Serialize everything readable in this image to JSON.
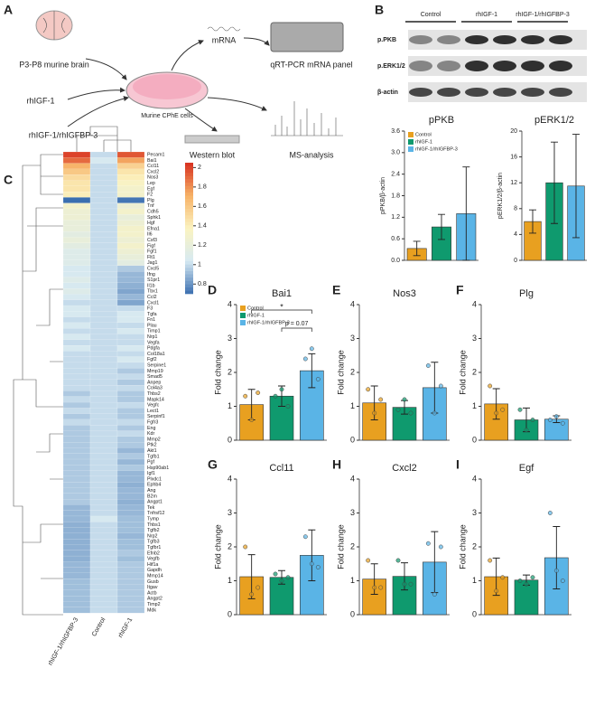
{
  "figure": {
    "panel_labels": [
      "A",
      "B",
      "C",
      "D",
      "E",
      "F",
      "G",
      "H",
      "I"
    ],
    "diagram": {
      "brain": "P3-P8 murine brain",
      "mrna": "mRNA",
      "panel": "qRT-PCR mRNA panel",
      "igf": "rhIGF-1",
      "cells": "Murine CPhE cells",
      "combo": "rhIGF-1/rhIGFBP-3",
      "wb": "Western blot",
      "ms": "MS-analysis"
    },
    "blot": {
      "groups": [
        "Control",
        "rhIGF-1",
        "rhIGF-1/rhIGFBP-3"
      ],
      "rows": [
        "p.PKB",
        "p.ERK1/2",
        "β-actin"
      ]
    }
  },
  "groups": {
    "names": [
      "Control",
      "rhIGF-1",
      "rhIGF-1/rhIGFBP-3"
    ],
    "colors": [
      "#e8a020",
      "#0f9a6e",
      "#5ab4e6"
    ]
  },
  "chart_data": [
    {
      "type": "heatmap",
      "columns": [
        "rhIGF-1/rhIGFBP-3",
        "Control",
        "rhIGF-1"
      ],
      "rows": [
        "Pecam1",
        "Bai1",
        "Ccl11",
        "Cxcl2",
        "Nos3",
        "Lep",
        "Egf",
        "F2",
        "Plg",
        "Tnf",
        "Cdh5",
        "Sphk1",
        "Hgf",
        "Efna1",
        "Il6",
        "Csf3",
        "Figf",
        "Fgf1",
        "Flt1",
        "Jag1",
        "Cxcl5",
        "Ifng",
        "S1pr1",
        "Il1b",
        "Tbx1",
        "Ccl2",
        "Cxcl1",
        "F3",
        "Tgfa",
        "Fn1",
        "Plau",
        "Timp1",
        "Nrp1",
        "Vegfa",
        "Pdgfa",
        "Col18a1",
        "Fgf2",
        "Serpine1",
        "Mmp19",
        "Smad5",
        "Anpep",
        "Col4a3",
        "Thbs2",
        "Mapk14",
        "Vegfc",
        "Lect1",
        "Serpinf1",
        "Fgfr3",
        "Eng",
        "Kdr",
        "Mmp2",
        "Ptk2",
        "Akt1",
        "Tgfb1",
        "Pgf",
        "Hsp90ab1",
        "Igf1",
        "Plxdc1",
        "Ephb4",
        "Ang",
        "B2m",
        "Angpt1",
        "Tek",
        "Tnfrsf12",
        "Tymp",
        "Thbs1",
        "Tgfb2",
        "Nrp2",
        "Tgfb3",
        "Tgfbr1",
        "Efnb2",
        "Vegfb",
        "Hif1a",
        "Gapdh",
        "Mmp14",
        "Gusb",
        "Itgav",
        "Actb",
        "Angpt2",
        "Timp2",
        "Mdk"
      ],
      "values": [
        [
          2.0,
          1.0,
          1.95
        ],
        [
          1.9,
          1.05,
          1.75
        ],
        [
          1.7,
          1.0,
          1.55
        ],
        [
          1.6,
          1.0,
          1.45
        ],
        [
          1.5,
          1.0,
          1.4
        ],
        [
          1.45,
          1.0,
          1.35
        ],
        [
          1.45,
          1.0,
          1.3
        ],
        [
          1.4,
          1.0,
          1.3
        ],
        [
          0.7,
          1.0,
          0.72
        ],
        [
          1.3,
          1.0,
          1.25
        ],
        [
          1.25,
          1.0,
          1.3
        ],
        [
          1.25,
          1.0,
          1.2
        ],
        [
          1.2,
          1.0,
          1.25
        ],
        [
          1.2,
          1.0,
          1.3
        ],
        [
          1.15,
          1.0,
          1.3
        ],
        [
          1.2,
          1.0,
          1.25
        ],
        [
          1.15,
          1.0,
          1.3
        ],
        [
          1.1,
          1.0,
          1.25
        ],
        [
          1.1,
          1.0,
          1.2
        ],
        [
          1.1,
          1.0,
          1.15
        ],
        [
          1.05,
          1.0,
          0.95
        ],
        [
          1.05,
          1.0,
          0.9
        ],
        [
          1.1,
          1.0,
          0.9
        ],
        [
          1.05,
          1.0,
          0.88
        ],
        [
          1.1,
          1.0,
          0.85
        ],
        [
          1.05,
          1.0,
          0.9
        ],
        [
          1.0,
          1.0,
          0.85
        ],
        [
          1.05,
          1.0,
          1.0
        ],
        [
          1.05,
          1.0,
          1.05
        ],
        [
          1.0,
          1.0,
          1.05
        ],
        [
          1.05,
          1.0,
          1.0
        ],
        [
          1.0,
          1.0,
          1.05
        ],
        [
          1.05,
          1.0,
          1.0
        ],
        [
          1.0,
          1.0,
          1.0
        ],
        [
          1.05,
          1.0,
          1.05
        ],
        [
          1.0,
          1.0,
          1.0
        ],
        [
          1.0,
          1.0,
          1.05
        ],
        [
          1.0,
          1.0,
          1.0
        ],
        [
          1.0,
          1.0,
          0.95
        ],
        [
          1.0,
          1.0,
          1.0
        ],
        [
          1.0,
          1.0,
          0.95
        ],
        [
          1.0,
          1.0,
          1.0
        ],
        [
          0.95,
          1.0,
          0.95
        ],
        [
          1.0,
          1.0,
          0.95
        ],
        [
          0.95,
          1.0,
          1.0
        ],
        [
          1.0,
          1.0,
          0.95
        ],
        [
          0.95,
          1.0,
          0.95
        ],
        [
          1.0,
          1.0,
          1.0
        ],
        [
          0.95,
          1.0,
          0.95
        ],
        [
          0.95,
          1.0,
          1.0
        ],
        [
          0.95,
          1.0,
          0.95
        ],
        [
          0.95,
          1.0,
          0.95
        ],
        [
          0.95,
          1.0,
          0.9
        ],
        [
          0.95,
          1.0,
          0.95
        ],
        [
          0.95,
          1.0,
          0.9
        ],
        [
          0.95,
          1.0,
          0.95
        ],
        [
          0.95,
          1.0,
          0.9
        ],
        [
          0.95,
          1.0,
          0.9
        ],
        [
          0.95,
          1.0,
          0.88
        ],
        [
          0.95,
          1.0,
          0.9
        ],
        [
          0.95,
          1.0,
          0.9
        ],
        [
          0.95,
          1.0,
          0.88
        ],
        [
          0.9,
          1.0,
          0.9
        ],
        [
          0.9,
          1.0,
          0.9
        ],
        [
          0.9,
          1.05,
          0.92
        ],
        [
          0.88,
          1.0,
          0.92
        ],
        [
          0.88,
          1.0,
          0.92
        ],
        [
          0.88,
          1.0,
          0.9
        ],
        [
          0.88,
          1.0,
          0.92
        ],
        [
          0.88,
          1.0,
          0.92
        ],
        [
          0.88,
          1.0,
          0.95
        ],
        [
          0.88,
          1.0,
          0.92
        ],
        [
          0.9,
          1.0,
          0.95
        ],
        [
          0.9,
          1.0,
          0.95
        ],
        [
          0.9,
          1.0,
          0.95
        ],
        [
          0.92,
          1.0,
          0.95
        ],
        [
          0.92,
          1.0,
          0.95
        ],
        [
          0.92,
          1.0,
          0.95
        ],
        [
          0.92,
          1.0,
          0.95
        ],
        [
          0.92,
          1.0,
          0.95
        ],
        [
          0.92,
          1.0,
          0.95
        ]
      ],
      "clim": [
        0.7,
        2.05
      ],
      "colormap": [
        "#3b6fb0",
        "#d6e9f2",
        "#fbf3c0",
        "#f7b267",
        "#d7301f"
      ],
      "colorbar_ticks": [
        0.8,
        1,
        1.2,
        1.4,
        1.6,
        1.8,
        2
      ]
    },
    {
      "type": "bar",
      "title": "pPKB",
      "ylabel": "pPKB/β-actin",
      "legend": true,
      "values": [
        0.33,
        0.93,
        1.3
      ],
      "errors": [
        0.2,
        0.35,
        1.3
      ],
      "ylim": [
        0,
        3.6
      ],
      "yticks": [
        {
          "value": 0,
          "label": "0.0"
        },
        0.6,
        1.2,
        1.8,
        2.4,
        {
          "value": 3,
          "label": "3.0"
        },
        3.6
      ]
    },
    {
      "type": "bar",
      "title": "pERK1/2",
      "ylabel": "pERK1/2/β-actin",
      "values": [
        6,
        12,
        11.5
      ],
      "errors": [
        1.8,
        6.3,
        8
      ],
      "ylim": [
        0,
        20
      ],
      "yticks": [
        0,
        4,
        8,
        12,
        16,
        20
      ]
    },
    {
      "type": "bar",
      "title": "Bai1",
      "ylabel": "Fold change",
      "legend": true,
      "values": [
        1.05,
        1.3,
        2.05
      ],
      "errors": [
        0.45,
        0.3,
        0.5
      ],
      "points": [
        [
          1.3,
          0.6,
          1.4
        ],
        [
          1.3,
          1.5,
          1.0
        ],
        [
          2.4,
          2.7,
          1.8
        ]
      ],
      "annotations": [
        "*",
        "p = 0.07"
      ],
      "ylim": [
        0,
        4
      ],
      "yticks": [
        0,
        1,
        2,
        3,
        4
      ]
    },
    {
      "type": "bar",
      "title": "Nos3",
      "ylabel": "Fold change",
      "values": [
        1.1,
        0.97,
        1.55
      ],
      "errors": [
        0.5,
        0.2,
        0.75
      ],
      "points": [
        [
          1.5,
          0.8,
          1.2
        ],
        [
          0.9,
          1.2,
          0.8
        ],
        [
          2.2,
          0.8,
          1.6
        ]
      ],
      "ylim": [
        0,
        4
      ],
      "yticks": [
        0,
        1,
        2,
        3,
        4
      ]
    },
    {
      "type": "bar",
      "title": "Plg",
      "ylabel": "Fold change",
      "values": [
        1.07,
        0.6,
        0.62
      ],
      "errors": [
        0.45,
        0.35,
        0.1
      ],
      "points": [
        [
          1.6,
          0.8,
          0.9
        ],
        [
          0.9,
          0.3,
          0.6
        ],
        [
          0.6,
          0.7,
          0.5
        ]
      ],
      "ylim": [
        0,
        4
      ],
      "yticks": [
        0,
        1,
        2,
        3,
        4
      ]
    },
    {
      "type": "bar",
      "title": "Ccl11",
      "ylabel": "Fold change",
      "values": [
        1.12,
        1.1,
        1.75
      ],
      "errors": [
        0.65,
        0.2,
        0.75
      ],
      "points": [
        [
          2.0,
          0.6,
          0.8
        ],
        [
          1.2,
          1.0,
          1.1
        ],
        [
          2.3,
          1.5,
          1.4
        ]
      ],
      "ylim": [
        0,
        4
      ],
      "yticks": [
        0,
        1,
        2,
        3,
        4
      ]
    },
    {
      "type": "bar",
      "title": "Cxcl2",
      "ylabel": "Fold change",
      "values": [
        1.05,
        1.13,
        1.55
      ],
      "errors": [
        0.45,
        0.4,
        0.9
      ],
      "points": [
        [
          1.6,
          0.8,
          0.8
        ],
        [
          1.6,
          0.9,
          0.9
        ],
        [
          2.1,
          0.6,
          2.0
        ]
      ],
      "ylim": [
        0,
        4
      ],
      "yticks": [
        0,
        1,
        2,
        3,
        4
      ]
    },
    {
      "type": "bar",
      "title": "Egf",
      "ylabel": "Fold change",
      "values": [
        1.12,
        1.02,
        1.68
      ],
      "errors": [
        0.55,
        0.15,
        0.92
      ],
      "points": [
        [
          1.6,
          0.7,
          1.1
        ],
        [
          1.0,
          0.9,
          1.1
        ],
        [
          3.0,
          1.3,
          1.0
        ]
      ],
      "ylim": [
        0,
        4
      ],
      "yticks": [
        0,
        1,
        2,
        3,
        4
      ]
    }
  ]
}
